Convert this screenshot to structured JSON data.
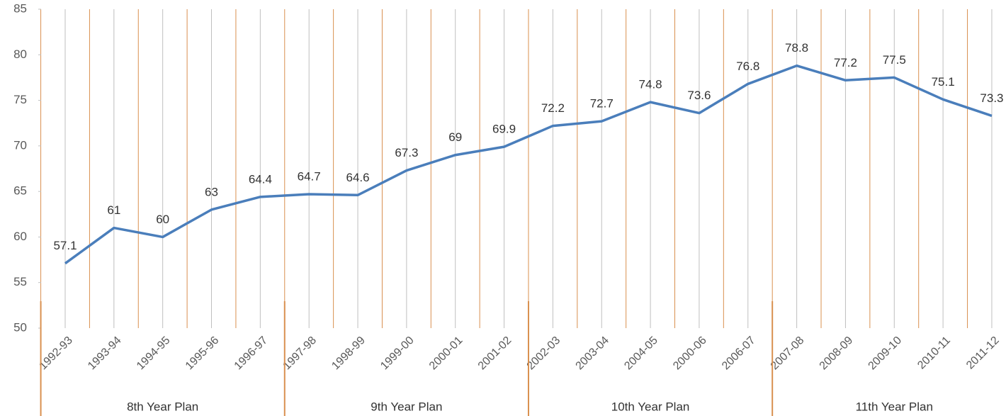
{
  "chart_data": {
    "type": "line",
    "categories": [
      "1992-93",
      "1993-94",
      "1994-95",
      "1995-96",
      "1996-97",
      "1997-98",
      "1998-99",
      "1999-00",
      "2000-01",
      "2001-02",
      "2002-03",
      "2003-04",
      "2004-05",
      "2000-06",
      "2006-07",
      "2007-08",
      "2008-09",
      "2009-10",
      "2010-11",
      "2011-12"
    ],
    "series": [
      {
        "color": "#4a7ebb",
        "values": [
          57.1,
          61,
          60,
          63,
          64.4,
          64.7,
          64.6,
          67.3,
          69,
          69.9,
          72.2,
          72.7,
          74.8,
          73.6,
          76.8,
          78.8,
          77.2,
          77.5,
          75.1,
          73.3
        ]
      }
    ],
    "ylim": [
      50,
      85
    ],
    "yticks": [
      50,
      55,
      60,
      65,
      70,
      75,
      80,
      85
    ],
    "plan_groups": [
      "8th Year Plan",
      "9th Year Plan",
      "10th Year Plan",
      "11th Year Plan"
    ]
  }
}
